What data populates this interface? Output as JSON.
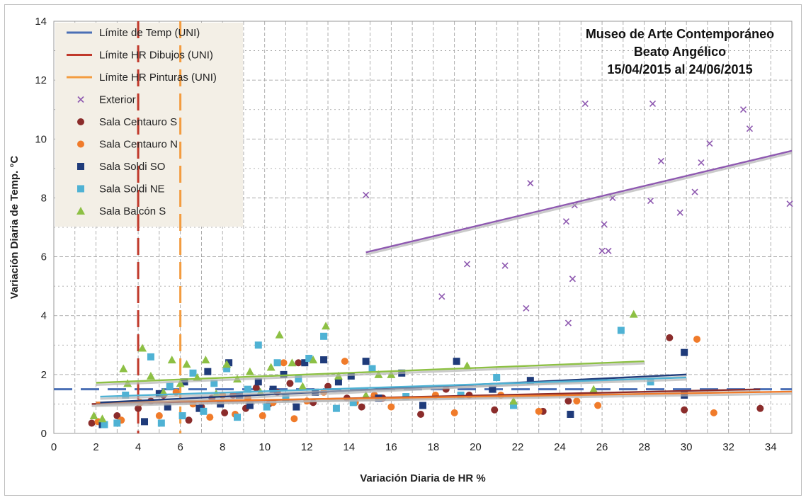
{
  "chart_data": {
    "type": "scatter",
    "title_lines": [
      "Museo de Arte Contemporáneo",
      "Beato Angélico",
      "15/04/2015 al 24/06/2015"
    ],
    "xlabel": "Variación Diaria de HR %",
    "ylabel": "Variación Diaria de Temp. °C",
    "xlim": [
      0,
      35
    ],
    "ylim": [
      0,
      14
    ],
    "xticks": [
      0,
      2,
      4,
      6,
      8,
      10,
      12,
      14,
      16,
      18,
      20,
      22,
      24,
      26,
      28,
      30,
      32,
      34
    ],
    "yticks": [
      0,
      2,
      4,
      6,
      8,
      10,
      12,
      14
    ],
    "grid": true,
    "legend_position": "top-left",
    "limits": [
      {
        "name": "Límite de Temp (UNI)",
        "axis": "y",
        "value": 1.5,
        "color": "#4a6fb5"
      },
      {
        "name": "Límite HR Dibujos (UNI)",
        "axis": "x",
        "value": 4,
        "color": "#c0392b"
      },
      {
        "name": "Límite HR Pinturas (UNI)",
        "axis": "x",
        "value": 6,
        "color": "#f39c40"
      }
    ],
    "series": [
      {
        "name": "Exterior",
        "marker": "x",
        "color": "#8e59b0",
        "points": [
          [
            14.8,
            8.1
          ],
          [
            18.4,
            4.65
          ],
          [
            19.6,
            5.75
          ],
          [
            21.4,
            5.7
          ],
          [
            22.4,
            4.25
          ],
          [
            22.6,
            8.5
          ],
          [
            24.3,
            7.2
          ],
          [
            24.4,
            3.75
          ],
          [
            24.6,
            5.25
          ],
          [
            24.7,
            7.75
          ],
          [
            25.2,
            11.2
          ],
          [
            26.0,
            6.2
          ],
          [
            26.1,
            7.1
          ],
          [
            26.3,
            6.2
          ],
          [
            26.5,
            8.0
          ],
          [
            28.3,
            7.9
          ],
          [
            28.4,
            11.2
          ],
          [
            28.8,
            9.25
          ],
          [
            29.7,
            7.5
          ],
          [
            30.4,
            8.2
          ],
          [
            30.7,
            9.2
          ],
          [
            31.1,
            9.85
          ],
          [
            32.7,
            11.0
          ],
          [
            33.0,
            10.35
          ],
          [
            34.9,
            7.8
          ]
        ],
        "trend": {
          "x": [
            14.8,
            35
          ],
          "y": [
            6.15,
            9.6
          ]
        }
      },
      {
        "name": "Sala Centauro S",
        "marker": "circle",
        "color": "#8b2c2b",
        "points": [
          [
            1.8,
            0.35
          ],
          [
            3.0,
            0.6
          ],
          [
            4.0,
            0.85
          ],
          [
            4.6,
            1.1
          ],
          [
            5.2,
            1.3
          ],
          [
            6.4,
            0.45
          ],
          [
            7.0,
            0.9
          ],
          [
            7.5,
            1.2
          ],
          [
            8.1,
            0.7
          ],
          [
            8.5,
            1.3
          ],
          [
            9.1,
            0.85
          ],
          [
            9.6,
            1.55
          ],
          [
            10.2,
            1.0
          ],
          [
            10.6,
            1.4
          ],
          [
            11.2,
            1.7
          ],
          [
            11.6,
            2.4
          ],
          [
            12.3,
            1.05
          ],
          [
            13.0,
            1.6
          ],
          [
            13.9,
            1.2
          ],
          [
            14.6,
            0.9
          ],
          [
            15.6,
            1.2
          ],
          [
            17.4,
            0.65
          ],
          [
            18.6,
            1.5
          ],
          [
            19.7,
            1.3
          ],
          [
            20.9,
            0.8
          ],
          [
            23.2,
            0.75
          ],
          [
            24.4,
            1.1
          ],
          [
            29.2,
            3.25
          ],
          [
            29.9,
            0.8
          ],
          [
            33.5,
            0.85
          ]
        ],
        "trend": {
          "x": [
            1.8,
            33.5
          ],
          "y": [
            1.0,
            1.5
          ]
        }
      },
      {
        "name": "Sala Centauro N",
        "marker": "circle",
        "color": "#f07b2a",
        "points": [
          [
            2.1,
            0.4
          ],
          [
            3.2,
            0.45
          ],
          [
            4.1,
            1.05
          ],
          [
            5.0,
            0.6
          ],
          [
            5.8,
            1.4
          ],
          [
            6.6,
            1.0
          ],
          [
            7.4,
            0.55
          ],
          [
            8.0,
            1.3
          ],
          [
            8.6,
            0.65
          ],
          [
            9.2,
            1.2
          ],
          [
            9.9,
            0.6
          ],
          [
            10.4,
            1.05
          ],
          [
            10.9,
            2.4
          ],
          [
            11.4,
            0.5
          ],
          [
            12.0,
            1.1
          ],
          [
            12.8,
            1.4
          ],
          [
            13.8,
            2.45
          ],
          [
            14.3,
            1.05
          ],
          [
            15.2,
            1.3
          ],
          [
            16.0,
            0.9
          ],
          [
            18.1,
            1.3
          ],
          [
            19.0,
            0.7
          ],
          [
            21.2,
            1.3
          ],
          [
            23.0,
            0.75
          ],
          [
            24.8,
            1.1
          ],
          [
            25.8,
            0.95
          ],
          [
            30.5,
            3.2
          ],
          [
            31.3,
            0.7
          ]
        ],
        "trend": {
          "x": [
            2.0,
            35
          ],
          "y": [
            1.05,
            1.42
          ]
        }
      },
      {
        "name": "Sala Soldi SO",
        "marker": "square",
        "color": "#1f3b7a",
        "points": [
          [
            2.3,
            0.3
          ],
          [
            4.3,
            0.4
          ],
          [
            5.0,
            1.35
          ],
          [
            5.4,
            0.9
          ],
          [
            6.2,
            1.75
          ],
          [
            6.9,
            0.85
          ],
          [
            7.3,
            2.1
          ],
          [
            7.9,
            1.0
          ],
          [
            8.3,
            2.4
          ],
          [
            8.8,
            1.3
          ],
          [
            9.3,
            0.95
          ],
          [
            9.7,
            1.75
          ],
          [
            10.4,
            1.5
          ],
          [
            10.9,
            2.0
          ],
          [
            11.5,
            0.9
          ],
          [
            11.9,
            2.4
          ],
          [
            12.4,
            1.4
          ],
          [
            12.8,
            2.5
          ],
          [
            13.5,
            1.75
          ],
          [
            14.1,
            1.95
          ],
          [
            14.8,
            2.45
          ],
          [
            15.4,
            1.2
          ],
          [
            16.5,
            2.05
          ],
          [
            17.5,
            0.95
          ],
          [
            19.1,
            2.45
          ],
          [
            20.8,
            1.5
          ],
          [
            22.6,
            1.8
          ],
          [
            24.5,
            0.65
          ],
          [
            29.9,
            2.75
          ],
          [
            29.9,
            1.3
          ]
        ],
        "trend": {
          "x": [
            2.2,
            30
          ],
          "y": [
            1.05,
            2.0
          ]
        }
      },
      {
        "name": "Sala Soldi NE",
        "marker": "square",
        "color": "#4fb2d4",
        "points": [
          [
            2.4,
            0.3
          ],
          [
            3.0,
            0.35
          ],
          [
            3.4,
            1.3
          ],
          [
            4.6,
            2.6
          ],
          [
            5.1,
            0.35
          ],
          [
            5.5,
            1.6
          ],
          [
            6.1,
            0.6
          ],
          [
            6.6,
            2.05
          ],
          [
            7.1,
            0.75
          ],
          [
            7.6,
            1.7
          ],
          [
            8.2,
            2.2
          ],
          [
            8.7,
            0.55
          ],
          [
            9.2,
            1.5
          ],
          [
            9.7,
            3.0
          ],
          [
            10.1,
            0.9
          ],
          [
            10.6,
            2.4
          ],
          [
            11.0,
            1.2
          ],
          [
            11.6,
            1.85
          ],
          [
            12.1,
            2.55
          ],
          [
            12.8,
            3.3
          ],
          [
            13.4,
            0.85
          ],
          [
            14.2,
            1.05
          ],
          [
            15.1,
            2.2
          ],
          [
            16.7,
            1.25
          ],
          [
            19.3,
            1.3
          ],
          [
            21.0,
            1.9
          ],
          [
            21.8,
            0.95
          ],
          [
            26.9,
            3.5
          ],
          [
            28.3,
            1.75
          ]
        ],
        "trend": {
          "x": [
            2.2,
            30
          ],
          "y": [
            1.25,
            1.9
          ]
        }
      },
      {
        "name": "Sala Balcón S",
        "marker": "triangle",
        "color": "#8dc044",
        "points": [
          [
            1.9,
            0.6
          ],
          [
            2.3,
            0.5
          ],
          [
            3.3,
            2.2
          ],
          [
            3.5,
            1.7
          ],
          [
            4.2,
            2.9
          ],
          [
            4.6,
            1.95
          ],
          [
            5.2,
            1.4
          ],
          [
            5.6,
            2.5
          ],
          [
            6.0,
            1.7
          ],
          [
            6.3,
            2.35
          ],
          [
            6.8,
            1.9
          ],
          [
            7.2,
            2.5
          ],
          [
            7.7,
            1.35
          ],
          [
            8.2,
            2.35
          ],
          [
            8.7,
            1.85
          ],
          [
            9.3,
            2.1
          ],
          [
            9.8,
            1.4
          ],
          [
            10.3,
            2.25
          ],
          [
            10.7,
            3.35
          ],
          [
            11.3,
            2.4
          ],
          [
            11.8,
            1.6
          ],
          [
            12.3,
            2.5
          ],
          [
            12.9,
            3.65
          ],
          [
            13.5,
            1.95
          ],
          [
            14.8,
            1.3
          ],
          [
            15.4,
            2.0
          ],
          [
            16.0,
            2.0
          ],
          [
            19.6,
            2.3
          ],
          [
            21.8,
            1.1
          ],
          [
            25.6,
            1.5
          ],
          [
            27.5,
            4.05
          ]
        ],
        "trend": {
          "x": [
            2.0,
            28
          ],
          "y": [
            1.72,
            2.45
          ]
        }
      }
    ]
  }
}
